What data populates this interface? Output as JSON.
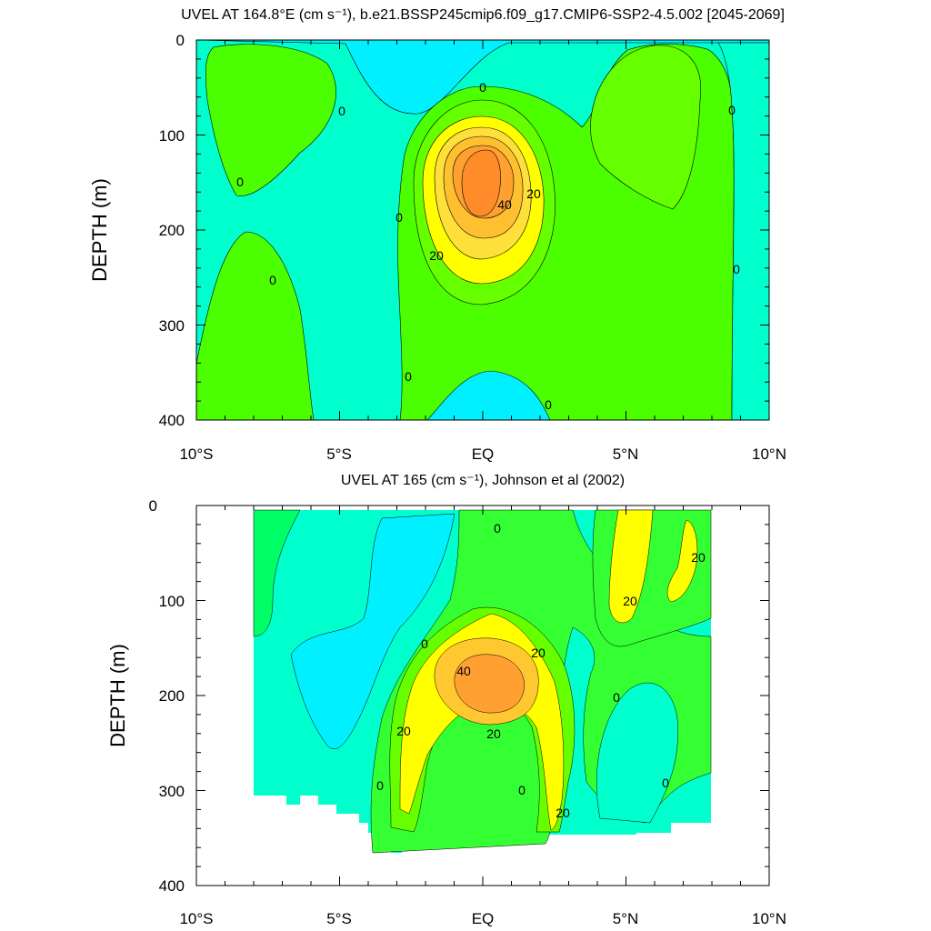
{
  "chart_data": [
    {
      "type": "contour",
      "title": "UVEL AT 164.8°E (cm s⁻¹), b.e21.BSSP245cmip6.f09_g17.CMIP6-SSP2-4.5.002 [2045-2069]",
      "ylabel": "DEPTH (m)",
      "xlim": [
        -10,
        10
      ],
      "ylim": [
        400,
        0
      ],
      "x_tick_labels": [
        "10°S",
        "5°S",
        "EQ",
        "5°N",
        "10°N"
      ],
      "y_tick_labels": [
        "0",
        "100",
        "200",
        "300",
        "400"
      ],
      "contour_labels": [
        "0",
        "0",
        "0",
        "0",
        "0",
        "0",
        "0",
        "0",
        "0",
        "20",
        "20",
        "40"
      ],
      "levels": [
        -10,
        0,
        10,
        20,
        30,
        40,
        50
      ],
      "colors": [
        "#00f0ff",
        "#00ffcc",
        "#00ff66",
        "#66ff00",
        "#ffff00",
        "#ffc830",
        "#ffa030",
        "#ff8c28"
      ],
      "core": {
        "lat": 0,
        "depth": 165,
        "max_velocity": 50
      }
    },
    {
      "type": "contour",
      "title": "UVEL AT 165 (cm s⁻¹), Johnson et al (2002)",
      "ylabel": "DEPTH (m)",
      "xlim": [
        -10,
        10
      ],
      "ylim": [
        400,
        0
      ],
      "x_tick_labels": [
        "10°S",
        "5°S",
        "EQ",
        "5°N",
        "10°N"
      ],
      "y_tick_labels": [
        "0",
        "100",
        "200",
        "300",
        "400"
      ],
      "contour_labels": [
        "0",
        "0",
        "0",
        "0",
        "0",
        "0",
        "20",
        "20",
        "20",
        "20",
        "20",
        "20",
        "40"
      ],
      "levels": [
        -10,
        0,
        10,
        20,
        30,
        40
      ],
      "colors": [
        "#00f0ff",
        "#00ffcc",
        "#00ff66",
        "#66ff00",
        "#ffff00",
        "#ffc830",
        "#ffa030"
      ],
      "core": {
        "lat": 0,
        "depth": 185,
        "max_velocity": 40
      }
    }
  ]
}
